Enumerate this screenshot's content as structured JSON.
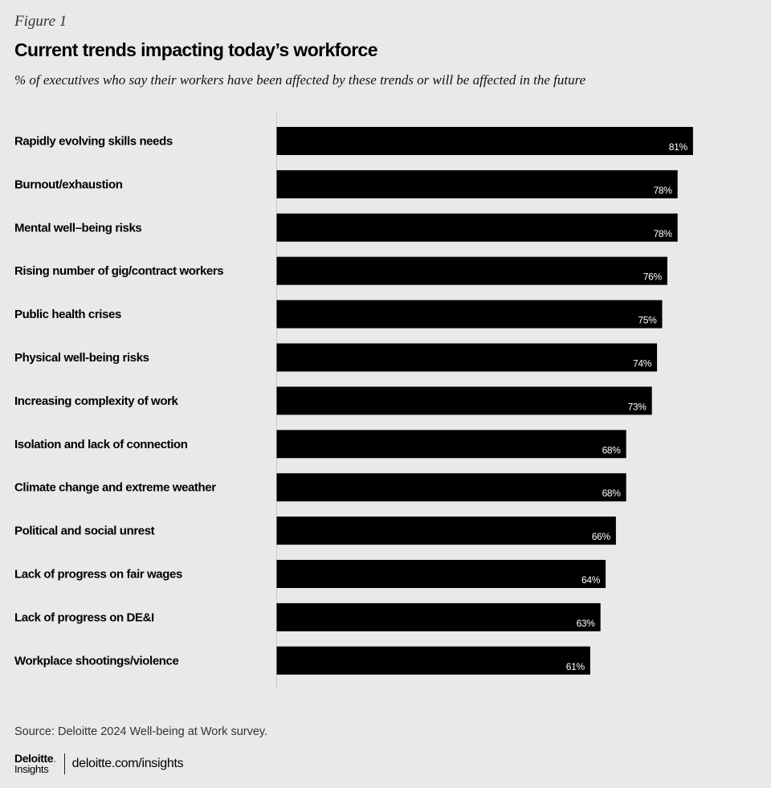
{
  "figure_label": "Figure 1",
  "title": "Current trends impacting today’s workforce",
  "subtitle": "% of executives who say their workers have been affected by these trends or will be affected in the future",
  "source": "Source: Deloitte 2024 Well-being at Work survey.",
  "logo": {
    "line1": "Deloitte",
    "dot": ".",
    "line2": "Insights"
  },
  "footer_url": "deloitte.com/insights",
  "colors": {
    "background": "#e8e9eb",
    "bar": "#000000",
    "bar_label": "#ffffff"
  },
  "chart_data": {
    "type": "bar",
    "orientation": "horizontal",
    "categories": [
      "Rapidly evolving skills needs",
      "Burnout/exhaustion",
      "Mental well–being risks",
      "Rising number of gig/contract workers",
      "Public health crises",
      "Physical well-being risks",
      "Increasing complexity of work",
      "Isolation and lack of connection",
      "Climate change and extreme weather",
      "Political and social unrest",
      "Lack of progress on fair wages",
      "Lack of progress on DE&I",
      "Workplace shootings/violence"
    ],
    "values": [
      81,
      78,
      78,
      76,
      75,
      74,
      73,
      68,
      68,
      66,
      64,
      63,
      61
    ],
    "value_labels": [
      "81%",
      "78%",
      "78%",
      "76%",
      "75%",
      "74%",
      "73%",
      "68%",
      "68%",
      "66%",
      "64%",
      "63%",
      "61%"
    ],
    "unit": "%",
    "xlim": [
      0,
      100
    ],
    "grid": false,
    "legend": "none"
  }
}
